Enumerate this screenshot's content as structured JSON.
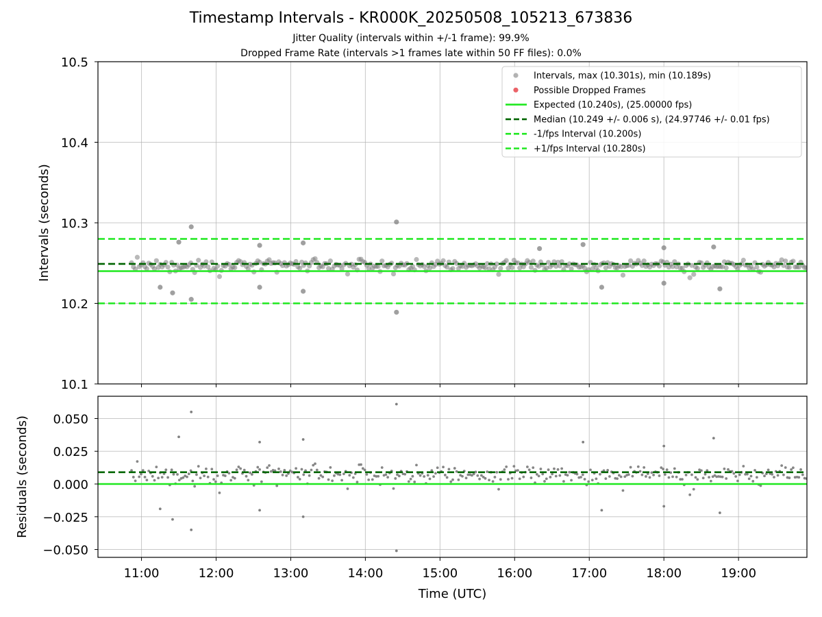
{
  "figure": {
    "title": "Timestamp Intervals - KR000K_20250508_105213_673836",
    "subtitle_1": "Jitter Quality (intervals within +/-1 frame): 99.9%",
    "subtitle_2": "Dropped Frame Rate (intervals >1 frames late within 50 FF files): 0.0%"
  },
  "colors": {
    "points": "#808080",
    "dropped": "#e8474d",
    "expected": "#1ee81e",
    "median": "#006400",
    "limits": "#1ee81e",
    "grid": "#b0b0b0"
  },
  "chart_data": [
    {
      "type": "scatter",
      "name": "intervals",
      "xlabel": "",
      "ylabel": "Intervals (seconds)",
      "xlim": [
        "10:25",
        "19:55"
      ],
      "ylim": [
        10.1,
        10.5
      ],
      "yticks": [
        "10.1",
        "10.2",
        "10.3",
        "10.4",
        "10.5"
      ],
      "yticks_values": [
        10.1,
        10.2,
        10.3,
        10.4,
        10.5
      ],
      "xticks_values": [
        "11:00",
        "12:00",
        "13:00",
        "14:00",
        "15:00",
        "16:00",
        "17:00",
        "18:00",
        "19:00"
      ],
      "grid": true,
      "legend_position": "top-right",
      "legend": [
        {
          "label": "Intervals, max (10.301s), min (10.189s)",
          "kind": "marker",
          "color": "#808080"
        },
        {
          "label": "Possible Dropped Frames",
          "kind": "marker",
          "color": "#e8474d"
        },
        {
          "label": "Expected (10.240s), (25.00000 fps)",
          "kind": "solid",
          "color": "#1ee81e"
        },
        {
          "label": "Median (10.249 +/- 0.006 s), (24.97746 +/- 0.01 fps)",
          "kind": "dashed",
          "color": "#006400"
        },
        {
          "label": "-1/fps Interval (10.200s)",
          "kind": "dashed",
          "color": "#1ee81e"
        },
        {
          "label": "+1/fps Interval (10.280s)",
          "kind": "dashed",
          "color": "#1ee81e"
        }
      ],
      "reference_lines": {
        "expected": 10.24,
        "median": 10.249,
        "lower_limit": 10.2,
        "upper_limit": 10.28
      },
      "x_range": [
        "10:52",
        "19:55"
      ],
      "sampling_interval_s": 10.249,
      "max": 10.301,
      "min": 10.189,
      "series": [
        {
          "name": "Intervals",
          "trend": "dense band around 10.24-10.255 s across the full time range",
          "notable_points": [
            {
              "x": "11:40",
              "y": 10.295
            },
            {
              "x": "11:40",
              "y": 10.205
            },
            {
              "x": "14:25",
              "y": 10.301
            },
            {
              "x": "14:25",
              "y": 10.189
            },
            {
              "x": "11:15",
              "y": 10.22
            },
            {
              "x": "11:25",
              "y": 10.213
            },
            {
              "x": "11:30",
              "y": 10.276
            },
            {
              "x": "12:35",
              "y": 10.272
            },
            {
              "x": "12:35",
              "y": 10.22
            },
            {
              "x": "13:10",
              "y": 10.275
            },
            {
              "x": "13:10",
              "y": 10.215
            },
            {
              "x": "16:20",
              "y": 10.268
            },
            {
              "x": "16:55",
              "y": 10.273
            },
            {
              "x": "17:10",
              "y": 10.22
            },
            {
              "x": "18:00",
              "y": 10.269
            },
            {
              "x": "18:00",
              "y": 10.225
            },
            {
              "x": "18:40",
              "y": 10.27
            },
            {
              "x": "18:45",
              "y": 10.218
            }
          ]
        },
        {
          "name": "Possible Dropped Frames",
          "points": []
        }
      ]
    },
    {
      "type": "scatter",
      "name": "residuals",
      "xlabel": "Time (UTC)",
      "ylabel": "Residuals (seconds)",
      "xlim": [
        "10:25",
        "19:55"
      ],
      "ylim": [
        -0.056,
        0.067
      ],
      "yticks": [
        "−0.050",
        "−0.025",
        "0.000",
        "0.025",
        "0.050"
      ],
      "yticks_values": [
        -0.05,
        -0.025,
        0.0,
        0.025,
        0.05
      ],
      "xticks": [
        "11:00",
        "12:00",
        "13:00",
        "14:00",
        "15:00",
        "16:00",
        "17:00",
        "18:00",
        "19:00"
      ],
      "grid": true,
      "reference_lines": {
        "expected": 0.0,
        "median": 0.009
      },
      "series": [
        {
          "name": "Residuals",
          "trend": "dense band around 0.000-0.015 s across the full time range",
          "notable_points": [
            {
              "x": "11:40",
              "y": 0.055
            },
            {
              "x": "11:40",
              "y": -0.035
            },
            {
              "x": "14:25",
              "y": 0.061
            },
            {
              "x": "14:25",
              "y": -0.051
            },
            {
              "x": "11:25",
              "y": -0.027
            },
            {
              "x": "11:15",
              "y": -0.019
            },
            {
              "x": "11:30",
              "y": 0.036
            },
            {
              "x": "12:35",
              "y": 0.032
            },
            {
              "x": "12:35",
              "y": -0.02
            },
            {
              "x": "13:10",
              "y": 0.034
            },
            {
              "x": "13:10",
              "y": -0.025
            },
            {
              "x": "16:55",
              "y": 0.032
            },
            {
              "x": "17:10",
              "y": -0.02
            },
            {
              "x": "18:00",
              "y": 0.029
            },
            {
              "x": "18:00",
              "y": -0.017
            },
            {
              "x": "18:40",
              "y": 0.035
            },
            {
              "x": "18:45",
              "y": -0.022
            }
          ]
        }
      ]
    }
  ]
}
